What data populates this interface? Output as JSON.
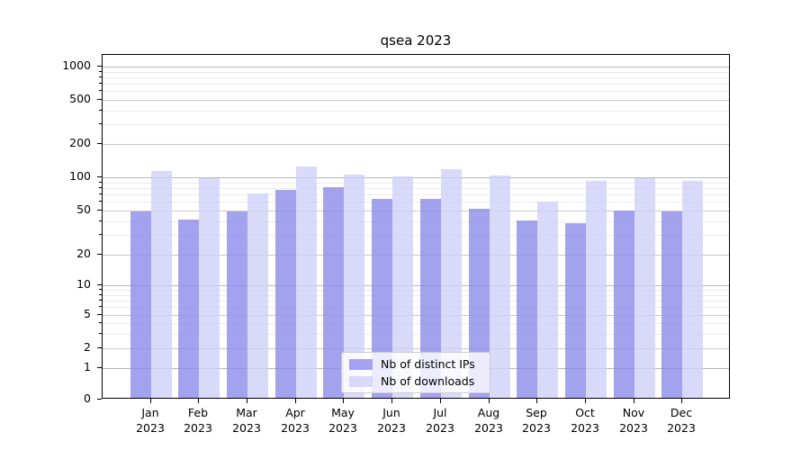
{
  "title": "qsea 2023",
  "chart_data": {
    "type": "bar",
    "title": "qsea 2023",
    "xlabel": "",
    "ylabel": "",
    "yscale": "symlog",
    "yticks": [
      0,
      1,
      2,
      5,
      10,
      20,
      50,
      100,
      200,
      500,
      1000
    ],
    "ylim": [
      0,
      1250
    ],
    "grid": "major and minor horizontal gridlines",
    "legend_position": "lower center",
    "categories": [
      "Jan\n2023",
      "Feb\n2023",
      "Mar\n2023",
      "Apr\n2023",
      "May\n2023",
      "Jun\n2023",
      "Jul\n2023",
      "Aug\n2023",
      "Sep\n2023",
      "Oct\n2023",
      "Nov\n2023",
      "Dec\n2023"
    ],
    "series": [
      {
        "name": "Nb of distinct IPs",
        "color": "#8c8cec",
        "opacity": 0.8,
        "values": [
          47,
          40,
          47,
          74,
          78,
          62,
          62,
          50,
          39,
          37,
          48,
          47
        ]
      },
      {
        "name": "Nb of downloads",
        "color": "#d0d0fa",
        "opacity": 0.8,
        "values": [
          110,
          95,
          69,
          120,
          102,
          98,
          114,
          100,
          58,
          90,
          95,
          90
        ]
      }
    ]
  },
  "colors": {
    "major_gridline_pow10": "#b7b7b7",
    "major_gridline": "#c9c9c9",
    "minor_gridline": "#ececec",
    "axis": "#000000",
    "legend_border": "#cccccc"
  }
}
